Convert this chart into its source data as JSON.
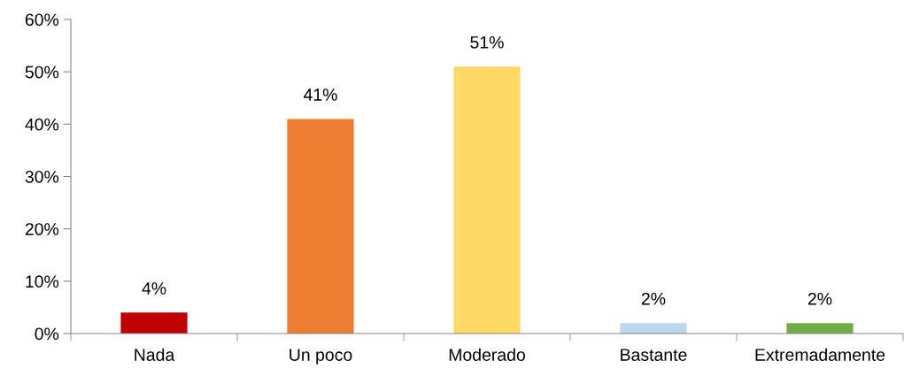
{
  "chart_data": {
    "type": "bar",
    "categories": [
      "Nada",
      "Un poco",
      "Moderado",
      "Bastante",
      "Extremadamente"
    ],
    "values": [
      4,
      41,
      51,
      2,
      2
    ],
    "colors": [
      "#c00000",
      "#ed7d31",
      "#ffd966",
      "#bdd7ee",
      "#70ad47"
    ],
    "value_labels": [
      "4%",
      "41%",
      "51%",
      "2%",
      "2%"
    ],
    "ylim": [
      0,
      60
    ],
    "yticks": [
      {
        "value": 0,
        "label": "0%"
      },
      {
        "value": 10,
        "label": "10%"
      },
      {
        "value": 20,
        "label": "20%"
      },
      {
        "value": 30,
        "label": "30%"
      },
      {
        "value": 40,
        "label": "40%"
      },
      {
        "value": 50,
        "label": "50%"
      },
      {
        "value": 60,
        "label": "60%"
      }
    ],
    "grid": false,
    "legend": false
  }
}
